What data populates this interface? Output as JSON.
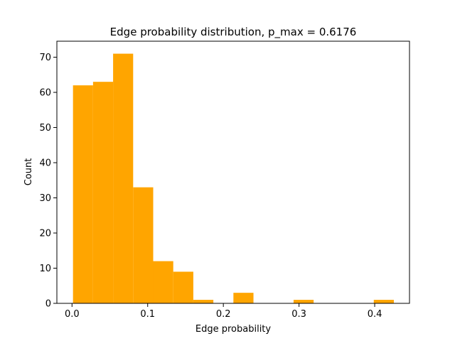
{
  "chart_data": {
    "type": "bar",
    "title": "Edge probability distribution, p_max = 0.6176",
    "xlabel": "Edge probability",
    "ylabel": "Count",
    "xlim": [
      -0.02,
      0.446
    ],
    "ylim": [
      0,
      74.55
    ],
    "x_ticks": [
      0.0,
      0.1,
      0.2,
      0.3,
      0.4
    ],
    "x_tick_labels": [
      "0.0",
      "0.1",
      "0.2",
      "0.3",
      "0.4"
    ],
    "y_ticks": [
      0,
      10,
      20,
      30,
      40,
      50,
      60,
      70
    ],
    "y_tick_labels": [
      "0",
      "10",
      "20",
      "30",
      "40",
      "50",
      "60",
      "70"
    ],
    "grid": false,
    "bins": [
      {
        "x0": 0.0013,
        "x1": 0.0278,
        "count": 62
      },
      {
        "x0": 0.0278,
        "x1": 0.0543,
        "count": 63
      },
      {
        "x0": 0.0543,
        "x1": 0.0808,
        "count": 71
      },
      {
        "x0": 0.0808,
        "x1": 0.1073,
        "count": 33
      },
      {
        "x0": 0.1073,
        "x1": 0.1338,
        "count": 12
      },
      {
        "x0": 0.1338,
        "x1": 0.1603,
        "count": 9
      },
      {
        "x0": 0.1603,
        "x1": 0.1868,
        "count": 1
      },
      {
        "x0": 0.1868,
        "x1": 0.2133,
        "count": 0
      },
      {
        "x0": 0.2133,
        "x1": 0.2398,
        "count": 3
      },
      {
        "x0": 0.2398,
        "x1": 0.2663,
        "count": 0
      },
      {
        "x0": 0.2663,
        "x1": 0.2928,
        "count": 0
      },
      {
        "x0": 0.2928,
        "x1": 0.3193,
        "count": 1
      },
      {
        "x0": 0.3193,
        "x1": 0.3458,
        "count": 0
      },
      {
        "x0": 0.3458,
        "x1": 0.3723,
        "count": 0
      },
      {
        "x0": 0.3723,
        "x1": 0.3988,
        "count": 0
      },
      {
        "x0": 0.3988,
        "x1": 0.4253,
        "count": 1
      }
    ],
    "bar_color": "#ffa500"
  }
}
